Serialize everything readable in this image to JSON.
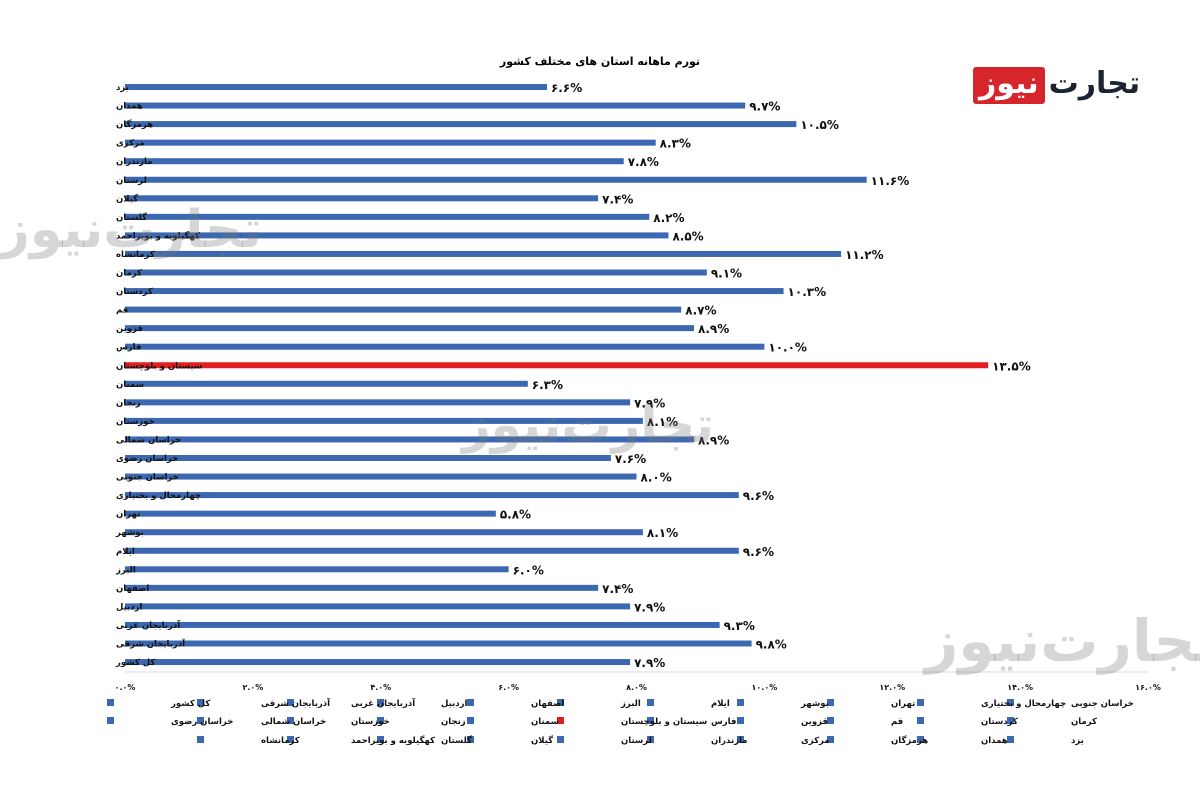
{
  "logo": {
    "part_red": "نیوز",
    "part_dark": "تجارت"
  },
  "watermark": {
    "part_left": "نیوز",
    "part_right": "تجارت"
  },
  "colors": {
    "bar": "#3c68b1",
    "highlight": "#e02020",
    "legend_default": "#3c68b1"
  },
  "chart_data": {
    "type": "bar",
    "orientation": "horizontal",
    "title": "تورم ماهانه استان های مختلف کشور",
    "categories": [
      "یزد",
      "همدان",
      "هرمزگان",
      "مرکزی",
      "مازندران",
      "لرستان",
      "گیلان",
      "گلستان",
      "کهگیلویه و بویراحمد",
      "کرمانشاه",
      "کرمان",
      "کردستان",
      "قم",
      "قزوین",
      "فارس",
      "سیستان و بلوچستان",
      "سمنان",
      "زنجان",
      "خوزستان",
      "خراسان شمالی",
      "خراسان رضوی",
      "خراسان جنوبی",
      "چهارمحال و بختیاری",
      "تهران",
      "بوشهر",
      "ایلام",
      "البرز",
      "اصفهان",
      "اردبیل",
      "آذربایجان غربی",
      "آذربایجان شرقی",
      "کل کشور"
    ],
    "values": [
      6.6,
      9.7,
      10.5,
      8.3,
      7.8,
      11.6,
      7.4,
      8.2,
      8.5,
      11.2,
      9.1,
      10.3,
      8.7,
      8.9,
      10.0,
      13.5,
      6.3,
      7.9,
      8.1,
      8.9,
      7.6,
      8.0,
      9.6,
      5.8,
      8.1,
      9.6,
      6.0,
      7.4,
      7.9,
      9.3,
      9.8,
      7.9
    ],
    "value_labels": [
      "۶.۶%",
      "۹.۷%",
      "۱۰.۵%",
      "۸.۳%",
      "۷.۸%",
      "۱۱.۶%",
      "۷.۴%",
      "۸.۲%",
      "۸.۵%",
      "۱۱.۲%",
      "۹.۱%",
      "۱۰.۳%",
      "۸.۷%",
      "۸.۹%",
      "۱۰.۰%",
      "۱۳.۵%",
      "۶.۳%",
      "۷.۹%",
      "۸.۱%",
      "۸.۹%",
      "۷.۶%",
      "۸.۰%",
      "۹.۶%",
      "۵.۸%",
      "۸.۱%",
      "۹.۶%",
      "۶.۰%",
      "۷.۴%",
      "۷.۹%",
      "۹.۳%",
      "۹.۸%",
      "۷.۹%"
    ],
    "highlight_category": "سیستان و بلوچستان",
    "xlim": [
      0,
      16
    ],
    "x_ticks": [
      0,
      2,
      4,
      6,
      8,
      10,
      12,
      14,
      16
    ],
    "x_tick_labels": [
      "۰.۰%",
      "۲.۰%",
      "۴.۰%",
      "۶.۰%",
      "۸.۰%",
      "۱۰.۰%",
      "۱۲.۰%",
      "۱۴.۰%",
      "۱۶.۰%"
    ],
    "grid": false,
    "legend_position": "bottom",
    "legend": [
      "خراسان جنوبی",
      "چهارمحال و بختیاری",
      "تهران",
      "بوشهر",
      "ایلام",
      "البرز",
      "اصفهان",
      "اردبیل",
      "آذربایجان غربی",
      "آذربایجان شرقی",
      "کل کشور",
      "کرمان",
      "کردستان",
      "قم",
      "قزوین",
      "فارس",
      "سیستان و بلوچستان",
      "سمنان",
      "زنجان",
      "خوزستان",
      "خراسان شمالی",
      "خراسان رضوی",
      "یزد",
      "همدان",
      "هرمزگان",
      "مرکزی",
      "مازندران",
      "لرستان",
      "گیلان",
      "گلستان",
      "کهگیلویه و بویراحمد",
      "کرمانشاه"
    ]
  }
}
